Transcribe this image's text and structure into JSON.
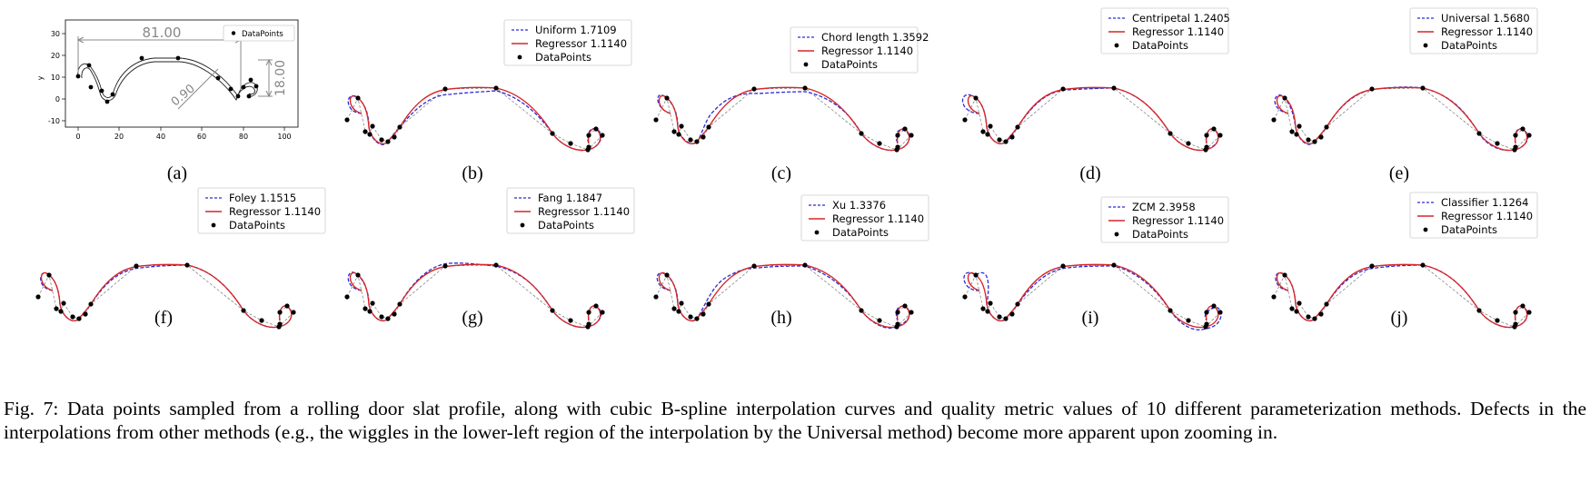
{
  "figure": {
    "caption": "Fig. 7: Data points sampled from a rolling door slat profile, along with cubic B-spline interpolation curves and quality metric values of 10 different parameterization methods. Defects in the interpolations from other methods (e.g., the wiggles in the lower-left region of the interpolation by the Universal method) become more apparent upon zooming in."
  },
  "colors": {
    "method_curve": "#2b2bd6",
    "regressor_curve": "#d62728",
    "points": "#000000",
    "dimension_lines": "#888888"
  },
  "panel_a": {
    "label": "(a)",
    "legend": "DataPoints",
    "ylabel": "y",
    "yticks": [
      "30",
      "20",
      "10",
      "0",
      "-10"
    ],
    "xticks": [
      "0",
      "20",
      "40",
      "60",
      "80",
      "100"
    ],
    "dim_width": "81.00",
    "dim_height": "18.00",
    "dim_thickness": "0.90"
  },
  "panels": [
    {
      "label": "(b)",
      "method": "Uniform 1.7109",
      "regressor": "Regressor 1.1140",
      "points": "DataPoints"
    },
    {
      "label": "(c)",
      "method": "Chord length 1.3592",
      "regressor": "Regressor 1.1140",
      "points": "DataPoints"
    },
    {
      "label": "(d)",
      "method": "Centripetal 1.2405",
      "regressor": "Regressor 1.1140",
      "points": "DataPoints"
    },
    {
      "label": "(e)",
      "method": "Universal 1.5680",
      "regressor": "Regressor 1.1140",
      "points": "DataPoints"
    },
    {
      "label": "(f)",
      "method": "Foley 1.1515",
      "regressor": "Regressor 1.1140",
      "points": "DataPoints"
    },
    {
      "label": "(g)",
      "method": "Fang 1.1847",
      "regressor": "Regressor 1.1140",
      "points": "DataPoints"
    },
    {
      "label": "(h)",
      "method": "Xu 1.3376",
      "regressor": "Regressor 1.1140",
      "points": "DataPoints"
    },
    {
      "label": "(i)",
      "method": "ZCM 2.3958",
      "regressor": "Regressor 1.1140",
      "points": "DataPoints"
    },
    {
      "label": "(j)",
      "method": "Classifier 1.1264",
      "regressor": "Regressor 1.1140",
      "points": "DataPoints"
    }
  ]
}
